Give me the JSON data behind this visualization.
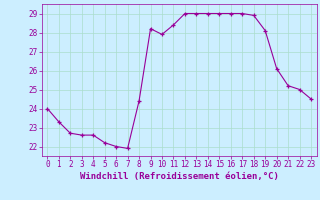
{
  "x": [
    0,
    1,
    2,
    3,
    4,
    5,
    6,
    7,
    8,
    9,
    10,
    11,
    12,
    13,
    14,
    15,
    16,
    17,
    18,
    19,
    20,
    21,
    22,
    23
  ],
  "y": [
    24.0,
    23.3,
    22.7,
    22.6,
    22.6,
    22.2,
    22.0,
    21.9,
    24.4,
    28.2,
    27.9,
    28.4,
    29.0,
    29.0,
    29.0,
    29.0,
    29.0,
    29.0,
    28.9,
    28.1,
    26.1,
    25.2,
    25.0,
    24.5
  ],
  "line_color": "#990099",
  "marker": "+",
  "marker_size": 3,
  "marker_color": "#990099",
  "bg_color": "#cceeff",
  "grid_color": "#aaddcc",
  "xlabel": "Windchill (Refroidissement éolien,°C)",
  "xlim": [
    -0.5,
    23.5
  ],
  "ylim": [
    21.5,
    29.5
  ],
  "yticks": [
    22,
    23,
    24,
    25,
    26,
    27,
    28,
    29
  ],
  "xticks": [
    0,
    1,
    2,
    3,
    4,
    5,
    6,
    7,
    8,
    9,
    10,
    11,
    12,
    13,
    14,
    15,
    16,
    17,
    18,
    19,
    20,
    21,
    22,
    23
  ],
  "xlabel_fontsize": 6.5,
  "tick_fontsize": 5.5,
  "label_color": "#990099",
  "linewidth": 0.8
}
